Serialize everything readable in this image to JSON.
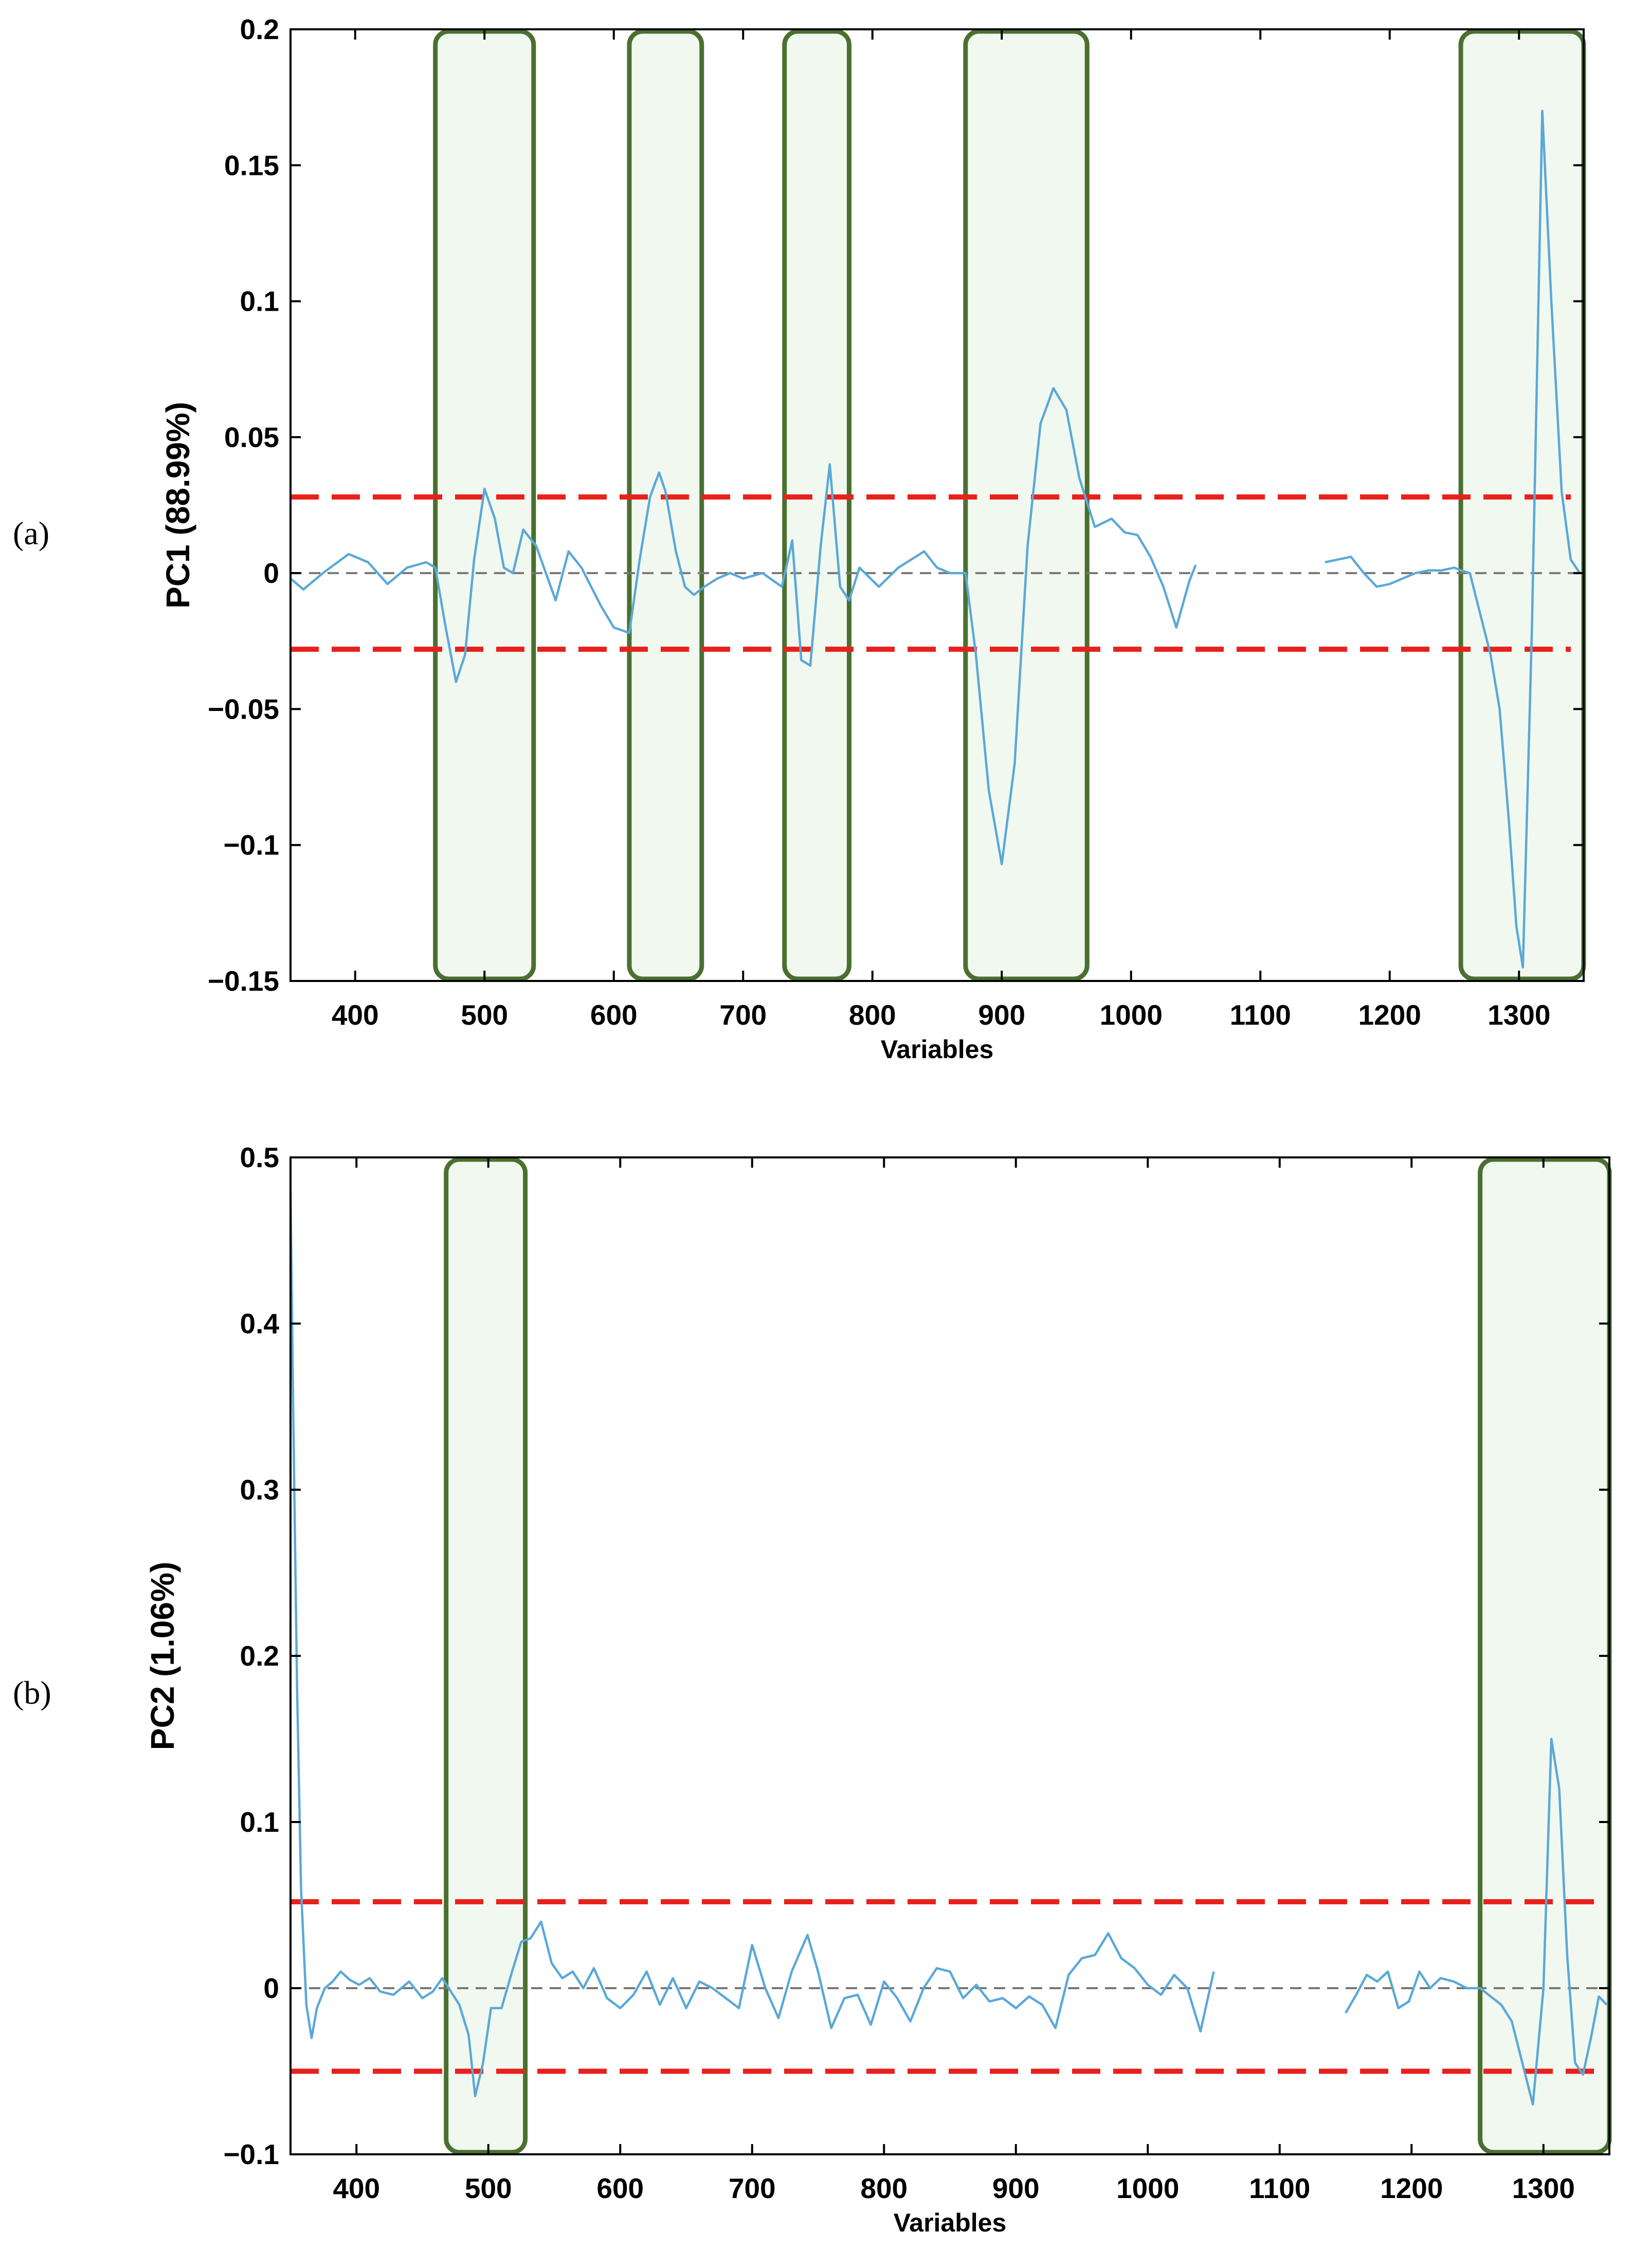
{
  "chart_data": [
    {
      "type": "line",
      "panel_label": "(a)",
      "title": "",
      "xlabel": "Variables",
      "ylabel": "PC1 (88.99%)",
      "xlim": [
        350,
        1350
      ],
      "ylim": [
        -0.15,
        0.2
      ],
      "xticks": [
        "400",
        "500",
        "600",
        "700",
        "800",
        "900",
        "1000",
        "1100",
        "1200",
        "1300"
      ],
      "yticks": [
        "0.2",
        "0.15",
        "0.1",
        "0.05",
        "0",
        "−0.05",
        "−0.1",
        "−0.15"
      ],
      "grid": false,
      "colors": {
        "line": "#5aa8d8",
        "threshold": "#e8211c",
        "zero": "#777777",
        "highlight_edge": "#4a7030",
        "highlight_fill": "#f1f8ef"
      },
      "thresholds": [
        0.028,
        -0.028
      ],
      "highlight_ranges": [
        [
          462,
          538
        ],
        [
          612,
          668
        ],
        [
          732,
          782
        ],
        [
          872,
          966
        ],
        [
          1255,
          1350
        ]
      ],
      "series": [
        {
          "x": [
            350,
            360,
            375,
            395,
            410,
            425,
            440,
            455,
            462,
            470,
            478,
            485,
            492,
            500,
            508,
            515,
            522,
            530,
            540,
            555,
            565,
            575,
            590,
            600,
            612,
            620,
            628,
            635,
            640,
            648,
            655,
            662,
            670,
            680,
            690,
            700,
            715,
            730,
            738,
            745,
            752,
            760,
            767,
            775,
            782,
            790,
            805,
            820,
            840,
            850,
            860,
            872,
            880,
            890,
            900,
            910,
            920,
            930,
            940,
            950,
            960,
            972,
            985,
            995,
            1005,
            1015,
            1025,
            1035,
            1045,
            1050
          ],
          "y": [
            -0.002,
            -0.006,
            0,
            0.007,
            0.004,
            -0.004,
            0.002,
            0.004,
            0.002,
            -0.02,
            -0.04,
            -0.03,
            0.005,
            0.031,
            0.02,
            0.002,
            0.0,
            0.016,
            0.01,
            -0.01,
            0.008,
            0.002,
            -0.012,
            -0.02,
            -0.022,
            0.005,
            0.028,
            0.037,
            0.03,
            0.008,
            -0.005,
            -0.008,
            -0.005,
            -0.002,
            0.0,
            -0.002,
            0.0,
            -0.005,
            0.012,
            -0.032,
            -0.034,
            0.01,
            0.04,
            -0.005,
            -0.01,
            0.002,
            -0.005,
            0.002,
            0.008,
            0.002,
            0.0,
            0.0,
            -0.03,
            -0.08,
            -0.107,
            -0.07,
            0.01,
            0.055,
            0.068,
            0.06,
            0.035,
            0.017,
            0.02,
            0.015,
            0.014,
            0.006,
            -0.005,
            -0.02,
            -0.003,
            0.003
          ]
        },
        {
          "x": [
            1150,
            1160,
            1170,
            1180,
            1190,
            1200,
            1210,
            1220,
            1230,
            1240,
            1250,
            1255,
            1262,
            1270,
            1278,
            1285,
            1292,
            1298,
            1303,
            1310,
            1318,
            1325,
            1333,
            1340,
            1347
          ],
          "y": [
            0.004,
            0.005,
            0.006,
            0.0,
            -0.005,
            -0.004,
            -0.002,
            0.0,
            0.001,
            0.001,
            0.002,
            0.001,
            0.0,
            -0.015,
            -0.03,
            -0.05,
            -0.09,
            -0.13,
            -0.145,
            -0.02,
            0.17,
            0.1,
            0.03,
            0.005,
            0.0
          ]
        }
      ]
    },
    {
      "type": "line",
      "panel_label": "(b)",
      "title": "",
      "xlabel": "Variables",
      "ylabel": "PC2 (1.06%)",
      "xlim": [
        350,
        1350
      ],
      "ylim": [
        -0.1,
        0.5
      ],
      "xticks": [
        "400",
        "500",
        "600",
        "700",
        "800",
        "900",
        "1000",
        "1100",
        "1200",
        "1300"
      ],
      "yticks": [
        "0.5",
        "0.4",
        "0.3",
        "0.2",
        "0.1",
        "0",
        "−0.1"
      ],
      "grid": false,
      "colors": {
        "line": "#5aa8d8",
        "threshold": "#e8211c",
        "zero": "#777777",
        "highlight_edge": "#4a7030",
        "highlight_fill": "#f1f8ef"
      },
      "thresholds": [
        0.052,
        -0.05
      ],
      "highlight_ranges": [
        [
          468,
          528
        ],
        [
          1252,
          1350
        ]
      ],
      "series": [
        {
          "x": [
            350,
            352,
            355,
            358,
            362,
            366,
            370,
            376,
            382,
            388,
            395,
            402,
            410,
            418,
            428,
            440,
            450,
            458,
            465,
            470,
            478,
            485,
            490,
            496,
            502,
            510,
            518,
            525,
            532,
            540,
            548,
            556,
            564,
            572,
            580,
            590,
            600,
            610,
            620,
            630,
            640,
            650,
            660,
            670,
            680,
            690,
            700,
            710,
            720,
            730,
            742,
            750,
            760,
            770,
            780,
            790,
            800,
            810,
            820,
            830,
            840,
            850,
            860,
            870,
            880,
            890,
            900,
            910,
            920,
            930,
            940,
            950,
            960,
            970,
            980,
            990,
            1000,
            1010,
            1020,
            1030,
            1040,
            1050
          ],
          "y": [
            0.48,
            0.35,
            0.18,
            0.06,
            -0.01,
            -0.03,
            -0.012,
            0.0,
            0.004,
            0.01,
            0.005,
            0.002,
            0.006,
            -0.002,
            -0.004,
            0.004,
            -0.006,
            -0.002,
            0.006,
            0.0,
            -0.01,
            -0.028,
            -0.065,
            -0.045,
            -0.012,
            -0.012,
            0.01,
            0.028,
            0.03,
            0.04,
            0.015,
            0.006,
            0.01,
            0.0,
            0.012,
            -0.006,
            -0.012,
            -0.004,
            0.01,
            -0.01,
            0.006,
            -0.012,
            0.004,
            0.0,
            -0.006,
            -0.012,
            0.026,
            0.0,
            -0.018,
            0.01,
            0.032,
            0.01,
            -0.024,
            -0.006,
            -0.004,
            -0.022,
            0.004,
            -0.006,
            -0.02,
            0.0,
            0.012,
            0.01,
            -0.006,
            0.002,
            -0.008,
            -0.006,
            -0.012,
            -0.005,
            -0.01,
            -0.024,
            0.008,
            0.018,
            0.02,
            0.033,
            0.018,
            0.012,
            0.002,
            -0.004,
            0.008,
            0.0,
            -0.026,
            0.01
          ]
        },
        {
          "x": [
            1150,
            1158,
            1166,
            1174,
            1182,
            1190,
            1198,
            1206,
            1214,
            1222,
            1232,
            1242,
            1252,
            1260,
            1268,
            1276,
            1284,
            1292,
            1300,
            1306,
            1312,
            1318,
            1324,
            1330,
            1336,
            1342,
            1348
          ],
          "y": [
            -0.015,
            -0.004,
            0.008,
            0.004,
            0.01,
            -0.012,
            -0.008,
            0.01,
            0.0,
            0.006,
            0.004,
            0.0,
            0.0,
            -0.005,
            -0.01,
            -0.02,
            -0.045,
            -0.07,
            0.0,
            0.15,
            0.12,
            0.02,
            -0.045,
            -0.052,
            -0.03,
            -0.005,
            -0.01
          ]
        }
      ]
    }
  ]
}
